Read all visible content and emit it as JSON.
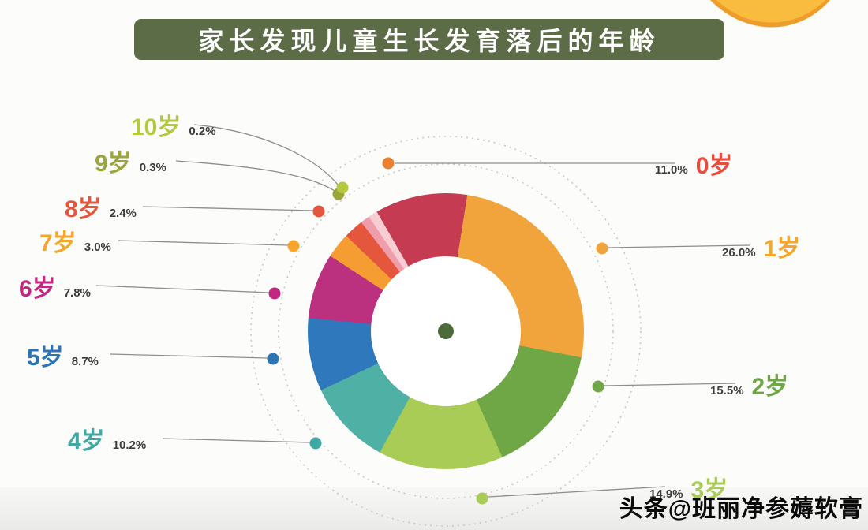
{
  "title": "家长发现儿童生长发育落后的年龄",
  "watermark": "头条@班丽净参薅软膏",
  "colors": {
    "title_bg": "#5c6c46",
    "title_text": "#ffffff",
    "center_dot": "#4c6b3a",
    "leader_line": "#8e8e8e",
    "dashed_circle": "#c6c6c6",
    "background": "#fcfcfa",
    "corner_blob_dark": "#ee9d2b",
    "corner_blob_light": "#f9bc3f"
  },
  "chart_data": {
    "type": "pie",
    "subtype": "donut",
    "title": "家长发现儿童生长发育落后的年龄",
    "unit": "%",
    "total": 100,
    "categories": [
      "0岁",
      "1岁",
      "2岁",
      "3岁",
      "4岁",
      "5岁",
      "6岁",
      "7岁",
      "8岁",
      "9岁",
      "10岁"
    ],
    "values": [
      11.0,
      26.0,
      15.5,
      14.9,
      10.2,
      8.7,
      7.8,
      3.0,
      2.4,
      0.3,
      0.2
    ],
    "slices": [
      {
        "age": "0岁",
        "value": 11.0,
        "pct": "11.0%",
        "color": "#c43b52",
        "dot_color": "#e8802f",
        "label_color": "#e74c3c"
      },
      {
        "age": "1岁",
        "value": 26.0,
        "pct": "26.0%",
        "color": "#f0a43b",
        "dot_color": "#f0a43b",
        "label_color": "#f5a62b"
      },
      {
        "age": "2岁",
        "value": 15.5,
        "pct": "15.5%",
        "color": "#6fa747",
        "dot_color": "#6fa747",
        "label_color": "#6fa747"
      },
      {
        "age": "3岁",
        "value": 14.9,
        "pct": "14.9%",
        "color": "#a8cc55",
        "dot_color": "#a8cc55",
        "label_color": "#a8cc55"
      },
      {
        "age": "4岁",
        "value": 10.2,
        "pct": "10.2%",
        "color": "#4fb0a5",
        "dot_color": "#3fa8a3",
        "label_color": "#3fa8a3"
      },
      {
        "age": "5岁",
        "value": 8.7,
        "pct": "8.7%",
        "color": "#2e78bb",
        "dot_color": "#2e74b5",
        "label_color": "#2e74b5"
      },
      {
        "age": "6岁",
        "value": 7.8,
        "pct": "7.8%",
        "color": "#bb3180",
        "dot_color": "#c02882",
        "label_color": "#c02882"
      },
      {
        "age": "7岁",
        "value": 3.0,
        "pct": "3.0%",
        "color": "#f59d33",
        "dot_color": "#f5a62b",
        "label_color": "#f5a62b"
      },
      {
        "age": "8岁",
        "value": 2.4,
        "pct": "2.4%",
        "color": "#e4573d",
        "dot_color": "#e4573d",
        "label_color": "#e4573d"
      },
      {
        "age": "9岁",
        "value": 0.3,
        "pct": "0.3%",
        "color": "#ef9cab",
        "dot_color": "#9aa53c",
        "label_color": "#9aa53c"
      },
      {
        "age": "10岁",
        "value": 0.2,
        "pct": "0.2%",
        "color": "#f7ccd2",
        "dot_color": "#b5c83e",
        "label_color": "#b5c83e"
      }
    ],
    "legend_position": "around-chart",
    "grid": false
  }
}
